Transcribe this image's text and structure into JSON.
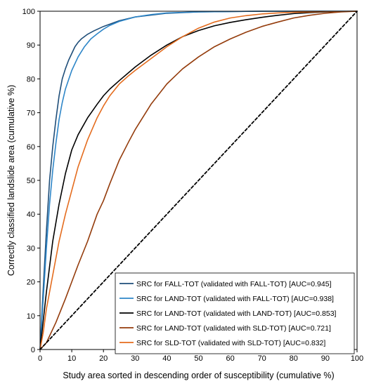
{
  "chart_data": {
    "type": "line",
    "title": "",
    "xlabel": "Study area sorted in descending order of susceptibility (cumulative %)",
    "ylabel": "Correctly classified landslide area (cumulative %)",
    "xlim": [
      0,
      100
    ],
    "ylim": [
      0,
      100
    ],
    "xticks": [
      "0",
      "10",
      "20",
      "30",
      "40",
      "50",
      "60",
      "70",
      "80",
      "90",
      "100"
    ],
    "yticks": [
      "0",
      "10",
      "20",
      "30",
      "40",
      "50",
      "60",
      "70",
      "80",
      "90",
      "100"
    ],
    "grid": false,
    "legend_position": "bottom-right",
    "series": [
      {
        "name": "SRC for FALL-TOT (validated with FALL-TOT) [AUC=0.945]",
        "color": "#1f4e79",
        "x": [
          0,
          1,
          2,
          3,
          4,
          5,
          6,
          7,
          8,
          9,
          10,
          11,
          12,
          13,
          14,
          15,
          17,
          20,
          25,
          30,
          40,
          50,
          60,
          70,
          80,
          90,
          100
        ],
        "y": [
          0,
          18,
          35,
          50,
          60,
          68,
          75,
          80,
          83,
          85.5,
          87.5,
          89.5,
          90.8,
          91.8,
          92.5,
          93.2,
          94.2,
          95.5,
          97.2,
          98.3,
          99.4,
          99.8,
          99.9,
          100,
          100,
          100,
          100
        ]
      },
      {
        "name": "SRC for LAND-TOT (validated with FALL-TOT) [AUC=0.938]",
        "color": "#2e86c8",
        "x": [
          0,
          1,
          2,
          3,
          4,
          5,
          6,
          7,
          8,
          10,
          12,
          14,
          16,
          18,
          20,
          22,
          25,
          30,
          35,
          40,
          50,
          60,
          70,
          80,
          90,
          100
        ],
        "y": [
          0,
          15,
          30,
          43,
          53,
          61,
          68,
          73,
          77,
          82.5,
          86.5,
          89.5,
          91.8,
          93.3,
          94.7,
          95.8,
          97,
          98.3,
          99,
          99.5,
          99.8,
          99.9,
          100,
          100,
          100,
          100
        ]
      },
      {
        "name": "SRC for LAND-TOT (validated with LAND-TOT) [AUC=0.853]",
        "color": "#000000",
        "x": [
          0,
          2,
          4,
          6,
          8,
          10,
          12,
          15,
          18,
          20,
          22,
          25,
          30,
          35,
          40,
          45,
          50,
          55,
          60,
          65,
          70,
          75,
          80,
          85,
          90,
          95,
          100
        ],
        "y": [
          0,
          17,
          32,
          43,
          52,
          59,
          63.5,
          68.5,
          72.5,
          75,
          77,
          79.5,
          83.5,
          87,
          90,
          92.5,
          94.3,
          95.7,
          96.7,
          97.5,
          98.2,
          98.8,
          99.3,
          99.6,
          99.8,
          99.9,
          100
        ]
      },
      {
        "name": "SRC for LAND-TOT (validated with SLD-TOT) [AUC=0.721]",
        "color": "#943c0c",
        "x": [
          0,
          2,
          5,
          8,
          10,
          12,
          15,
          18,
          20,
          22,
          25,
          28,
          30,
          35,
          40,
          45,
          50,
          55,
          60,
          65,
          70,
          75,
          80,
          85,
          90,
          95,
          100
        ],
        "y": [
          0,
          2,
          8,
          15,
          20,
          25,
          32,
          40,
          44,
          49,
          56,
          61.5,
          65,
          72.5,
          78.5,
          83,
          86.5,
          89.5,
          91.8,
          93.8,
          95.5,
          96.8,
          98,
          98.8,
          99.4,
          99.8,
          100
        ]
      },
      {
        "name": "SRC for SLD-TOT (validated with SLD-TOT) [AUC=0.832]",
        "color": "#e46c1e",
        "x": [
          0,
          1,
          2,
          4,
          6,
          8,
          10,
          12,
          15,
          18,
          20,
          22,
          25,
          28,
          30,
          35,
          40,
          45,
          50,
          55,
          60,
          65,
          70,
          75,
          80,
          85,
          90,
          95,
          100
        ],
        "y": [
          0,
          5,
          12,
          22,
          32,
          40,
          47,
          54,
          62,
          68.5,
          72,
          75,
          78.5,
          81,
          82.5,
          86,
          89.5,
          92.5,
          95,
          96.8,
          98,
          98.7,
          99.2,
          99.5,
          99.7,
          99.8,
          99.9,
          99.95,
          100
        ]
      },
      {
        "name": "",
        "color": "#000000",
        "dashed": true,
        "x": [
          0,
          100
        ],
        "y": [
          0,
          100
        ]
      }
    ]
  }
}
